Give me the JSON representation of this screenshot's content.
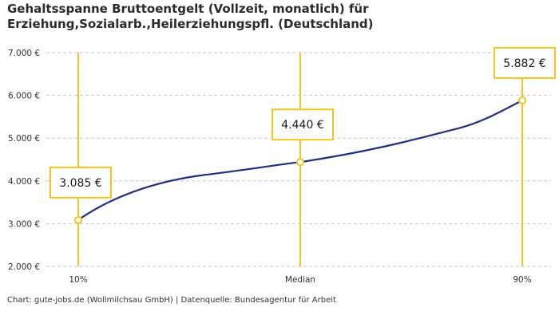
{
  "title_line1": "Gehaltsspanne Bruttoentgelt (Vollzeit, monatlich) für",
  "title_line2": "Erziehung,Sozialarb.,Heilerziehungspfl. (Deutschland)",
  "footer": "Chart: gute-jobs.de (Wollmilchsau GmbH) | Datenquelle: Bundesagentur für Arbeit",
  "colors": {
    "line": "#1f2f86",
    "marker": "#f5c41f",
    "grid": "#c8c8c8",
    "text": "#333333"
  },
  "chart_data": {
    "type": "line",
    "title": "Gehaltsspanne Bruttoentgelt (Vollzeit, monatlich) für Erziehung,Sozialarb.,Heilerziehungspfl. (Deutschland)",
    "categories": [
      "10%",
      "Median",
      "90%"
    ],
    "values": [
      3085,
      4440,
      5882
    ],
    "value_labels": [
      "3.085 €",
      "4.440 €",
      "5.882 €"
    ],
    "ylim": [
      2000,
      7000
    ],
    "yticks": [
      7000,
      6000,
      5000,
      4000,
      3000,
      2000
    ],
    "ytick_labels": [
      "7.000 €",
      "6.000 €",
      "5.000 €",
      "4.000 €",
      "3.000 €",
      "2.000 €"
    ],
    "grid": "horizontal dashed",
    "legend": "none"
  }
}
